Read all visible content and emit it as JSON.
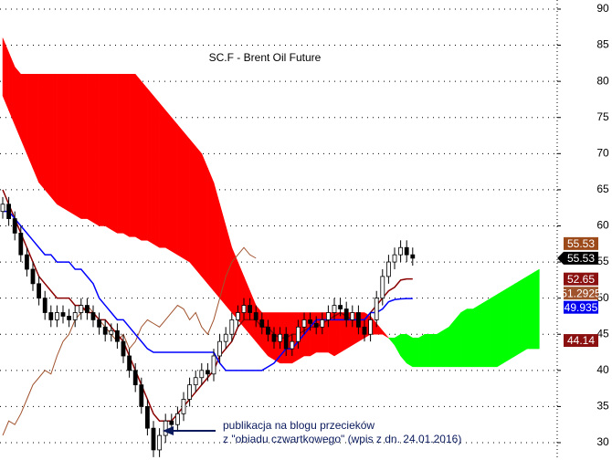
{
  "chart_data": {
    "type": "candlestick",
    "title": "SC.F - Brent Oil Future",
    "annotation": [
      "publikacja na blogu przecieków",
      "z \"obiadu czwartkowego\" (wpis z dn. 24.01.2016)"
    ],
    "ylim": [
      27.6,
      91.26
    ],
    "yticks": [
      30,
      35,
      40,
      45,
      50,
      55,
      60,
      65,
      70,
      75,
      80,
      85,
      90
    ],
    "grid": true,
    "up_color": "#ffffff",
    "down_color": "#000000",
    "open": [
      62,
      63,
      61,
      59,
      56,
      54,
      52,
      50,
      48,
      47,
      48,
      47.5,
      47,
      48,
      49,
      48,
      47,
      46,
      45,
      45.5,
      44,
      42,
      40,
      38,
      35,
      32,
      29,
      31,
      33,
      32.5,
      34,
      36,
      38,
      39,
      40,
      39.5,
      42,
      44,
      45,
      47,
      48,
      49,
      48,
      47,
      46,
      45,
      44,
      45,
      43,
      44,
      46,
      47,
      46.5,
      46,
      47,
      48,
      49,
      48.5,
      47,
      48,
      46,
      45,
      47,
      50,
      53,
      55,
      56,
      57,
      56
    ],
    "high": [
      64,
      64,
      62,
      60,
      57,
      55,
      53,
      51,
      49,
      49,
      49,
      48.5,
      49,
      50,
      50,
      49,
      48,
      47,
      46.5,
      46.5,
      45,
      43,
      41,
      39,
      36,
      33,
      32,
      34,
      34,
      35,
      37,
      39,
      40,
      41,
      41,
      43,
      45,
      46,
      48,
      49,
      50,
      50,
      49,
      48,
      47,
      46,
      46,
      46,
      45,
      47,
      48,
      48,
      47.5,
      48,
      49,
      50,
      50,
      49.5,
      49,
      49,
      47,
      48,
      51,
      54,
      56,
      57,
      58,
      58,
      57
    ],
    "low": [
      61,
      60,
      58,
      55,
      53,
      51,
      49,
      47,
      46,
      46,
      46.5,
      46,
      46,
      47,
      47,
      46,
      45,
      44,
      44,
      43,
      41,
      39,
      37,
      34,
      31,
      28,
      28,
      30,
      31.5,
      31.5,
      33,
      35,
      37,
      38,
      38.5,
      38.5,
      41,
      43,
      44,
      46,
      47,
      47,
      46,
      45,
      44,
      43,
      43,
      42,
      42,
      43,
      45,
      45.5,
      45,
      45,
      46,
      47,
      47.5,
      46,
      46,
      45,
      44,
      44,
      46,
      49,
      52,
      54,
      55,
      55,
      54.5
    ],
    "close": [
      63,
      61,
      59,
      56,
      54,
      52,
      50,
      48,
      47,
      48,
      47.5,
      47,
      48,
      49,
      48,
      47,
      46,
      45,
      45.5,
      44,
      42,
      40,
      38,
      35,
      32,
      29,
      31,
      33,
      32.5,
      34,
      36,
      38,
      39,
      40,
      39.5,
      42,
      44,
      45,
      47,
      48,
      49,
      48,
      47,
      46,
      45,
      44,
      45,
      43,
      44,
      46,
      47,
      46.5,
      46,
      47,
      48,
      49,
      48.5,
      47,
      48,
      46,
      45,
      47,
      50,
      53,
      55,
      56,
      57,
      56,
      55.53
    ],
    "lines": [
      {
        "color": "#a0522d",
        "width": 1,
        "values": [
          31,
          33,
          32.5,
          34,
          36,
          38,
          39,
          40,
          39.5,
          42,
          44,
          45,
          47,
          48,
          49,
          48,
          47,
          46,
          45,
          44,
          45,
          43,
          44,
          46,
          47,
          46.5,
          46,
          47,
          48,
          49,
          48.5,
          47,
          48,
          46,
          45,
          47,
          50,
          53,
          55,
          56,
          57,
          56,
          55.53,
          null,
          null,
          null,
          null,
          null,
          null,
          null,
          null,
          null,
          null,
          null,
          null,
          null,
          null,
          null,
          null,
          null,
          null,
          null,
          null,
          null,
          null,
          null,
          null,
          null,
          null
        ]
      },
      {
        "color": "#8b0000",
        "width": 1.5,
        "values": [
          65,
          63,
          61,
          59,
          57,
          55,
          53,
          52,
          51,
          50,
          50,
          50,
          49,
          49,
          48,
          48,
          47,
          47,
          46,
          45,
          44,
          42,
          40,
          38,
          36,
          34,
          33,
          33,
          33,
          34,
          35,
          36,
          37,
          38,
          39,
          40,
          42,
          43,
          44,
          46,
          47,
          47,
          47,
          46,
          46,
          45,
          44.5,
          44.5,
          45,
          45,
          45.5,
          46,
          46,
          46.5,
          47,
          47.5,
          48,
          47.5,
          47,
          47,
          47,
          48,
          49,
          50,
          51,
          51.5,
          52.5,
          52.65,
          52.65
        ]
      },
      {
        "color": "#0000ff",
        "width": 1.5,
        "values": [
          62,
          62,
          61,
          60,
          59,
          58,
          57,
          56,
          56,
          55,
          55,
          55,
          54,
          54,
          53,
          52,
          50,
          49,
          48,
          47,
          47,
          46,
          45,
          44,
          43,
          42.5,
          42.5,
          42.5,
          42.5,
          42.5,
          42.5,
          42.5,
          42.5,
          42.5,
          42.5,
          42.5,
          41,
          40,
          40,
          40,
          40,
          40,
          40,
          40,
          40.5,
          41,
          42,
          43,
          43,
          44,
          45,
          46,
          47,
          47,
          47,
          47,
          47,
          47,
          47,
          47,
          47,
          48,
          48,
          48.5,
          49.5,
          49.8,
          49.9,
          49.935,
          49.935
        ]
      }
    ],
    "cloud": {
      "up_color": "#ff0000",
      "down_color": "#00ff00",
      "span_a": [
        78,
        76,
        74,
        72,
        70,
        68,
        66,
        65,
        64,
        63,
        62.5,
        62,
        61.5,
        61,
        61,
        60.5,
        60,
        60,
        59.5,
        59,
        59,
        58.5,
        58.5,
        58,
        58,
        57.5,
        57,
        57,
        56.5,
        56,
        55.5,
        55,
        54,
        53,
        52,
        51,
        50,
        49,
        48,
        47,
        46,
        45,
        44,
        43,
        42,
        41.5,
        41,
        41,
        41,
        41.5,
        42,
        42,
        42.5,
        42.5,
        42.5,
        42,
        42.5,
        43,
        43.5,
        44,
        44.5,
        45,
        45,
        45,
        44.5,
        44.5,
        45,
        45,
        44.5,
        44.5,
        45,
        45,
        45,
        45.5,
        46,
        47,
        48,
        48.5,
        48.5,
        49,
        49.5,
        50,
        50.5,
        51,
        51.5,
        52,
        52.5,
        53,
        53.5,
        54
      ],
      "span_b": [
        86,
        84,
        82,
        81,
        81,
        81,
        81,
        81,
        81,
        81,
        81,
        81,
        81,
        81,
        81,
        81,
        81,
        81,
        81,
        81,
        81,
        81,
        81,
        80,
        79,
        78,
        77,
        76,
        75,
        74,
        73,
        72,
        71,
        70,
        68,
        66,
        63,
        60,
        57,
        55,
        53,
        51,
        49,
        48,
        48,
        48,
        48,
        48,
        48,
        48,
        48,
        48,
        48,
        48,
        48,
        48,
        48,
        48,
        48,
        48,
        48,
        47.5,
        46.5,
        45.5,
        44.5,
        43.5,
        42,
        41,
        40.5,
        40.5,
        40.5,
        40.5,
        40.5,
        40.5,
        40.5,
        40.5,
        40.5,
        40.5,
        40.5,
        40.5,
        40.5,
        40.5,
        40.5,
        41,
        41.5,
        42,
        42.5,
        43,
        43,
        43
      ]
    },
    "price_labels": [
      {
        "value": 55.53,
        "color": "#9c4a1a"
      },
      {
        "value": 55.53,
        "color": "#000000"
      },
      {
        "value": 52.65,
        "color": "#8b1010"
      },
      {
        "value": 51.2925,
        "color": "#a0522d"
      },
      {
        "value": 49.935,
        "color": "#0000ee"
      },
      {
        "value": 44.14,
        "color": "#8b1010"
      }
    ]
  }
}
